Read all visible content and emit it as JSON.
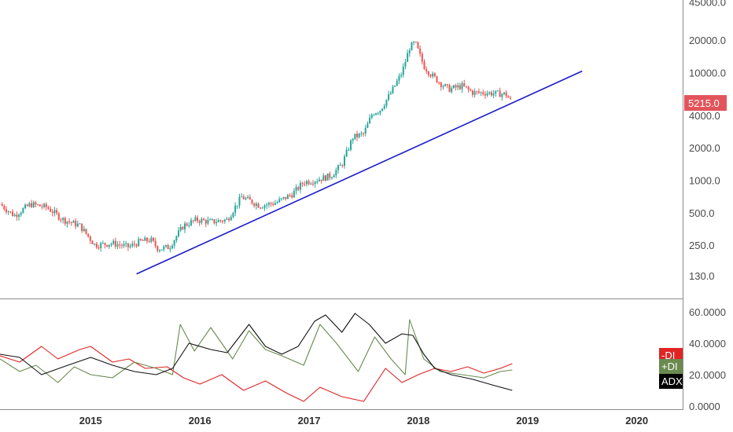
{
  "chart_data": [
    {
      "type": "candlestick",
      "y_scale": "log",
      "ylim": [
        110,
        48000
      ],
      "y_ticks": [
        "45000.0",
        "20000.0",
        "10000.0",
        "4000.0",
        "2000.0",
        "1000.0",
        "500.0",
        "250.0",
        "130.0"
      ],
      "y_tick_values": [
        45000,
        20000,
        10000,
        4000,
        2000,
        1000,
        500,
        250,
        130
      ],
      "x_ticks": [
        "2015",
        "2016",
        "2017",
        "2018",
        "2019",
        "2020"
      ],
      "x_tick_values": [
        2015,
        2016,
        2017,
        2018,
        2019,
        2020
      ],
      "xlim": [
        2014.17,
        2020.42
      ],
      "series": [
        {
          "x": [
            2014.17,
            2014.3,
            2014.45,
            2014.6,
            2014.75,
            2014.9,
            2015.04,
            2015.2,
            2015.35,
            2015.45,
            2015.55,
            2015.62,
            2015.72,
            2015.85,
            2015.97,
            2016.1,
            2016.25,
            2016.38,
            2016.45,
            2016.55,
            2016.7,
            2016.85,
            2016.95,
            2017.05,
            2017.2,
            2017.3,
            2017.4,
            2017.5,
            2017.58,
            2017.65,
            2017.75,
            2017.85,
            2017.92,
            2017.97,
            2018.05,
            2018.12,
            2018.2,
            2018.28,
            2018.4,
            2018.5,
            2018.6,
            2018.7,
            2018.8,
            2018.86
          ],
          "values": [
            600,
            470,
            600,
            560,
            430,
            380,
            250,
            260,
            240,
            270,
            280,
            230,
            240,
            380,
            430,
            410,
            430,
            700,
            650,
            580,
            620,
            750,
            960,
            1000,
            1100,
            1400,
            2500,
            2700,
            4200,
            4500,
            6500,
            10000,
            17000,
            19000,
            11500,
            9500,
            8000,
            7000,
            7500,
            6500,
            6500,
            6400,
            6300,
            5215
          ]
        }
      ],
      "last_price": "5215.0",
      "trendline": {
        "start": [
          2015.42,
          135
        ],
        "end": [
          2019.5,
          10300
        ]
      }
    },
    {
      "type": "line",
      "ylim": [
        0,
        65
      ],
      "y_ticks": [
        "60.0000",
        "40.0000",
        "20.0000",
        "0.0000"
      ],
      "y_tick_values": [
        60,
        40,
        20,
        0
      ],
      "series": [
        {
          "name": "-DI",
          "x": [
            2014.17,
            2014.35,
            2014.55,
            2014.7,
            2014.9,
            2015.0,
            2015.2,
            2015.35,
            2015.5,
            2015.7,
            2015.85,
            2016.0,
            2016.2,
            2016.4,
            2016.6,
            2016.8,
            2016.95,
            2017.1,
            2017.3,
            2017.5,
            2017.7,
            2017.85,
            2018.0,
            2018.15,
            2018.3,
            2018.45,
            2018.6,
            2018.75,
            2018.86
          ],
          "values": [
            32,
            28,
            38,
            30,
            36,
            38,
            28,
            30,
            24,
            25,
            18,
            14,
            20,
            10,
            16,
            8,
            3,
            12,
            6,
            3,
            24,
            15,
            20,
            24,
            22,
            25,
            21,
            24,
            27
          ]
        },
        {
          "name": "+DI",
          "x": [
            2014.17,
            2014.35,
            2014.5,
            2014.7,
            2014.85,
            2015.0,
            2015.2,
            2015.4,
            2015.6,
            2015.75,
            2015.82,
            2015.95,
            2016.1,
            2016.3,
            2016.45,
            2016.6,
            2016.75,
            2016.95,
            2017.1,
            2017.25,
            2017.45,
            2017.6,
            2017.75,
            2017.88,
            2017.92,
            2018.05,
            2018.2,
            2018.4,
            2018.6,
            2018.75,
            2018.86
          ],
          "values": [
            30,
            22,
            26,
            15,
            25,
            20,
            18,
            28,
            24,
            20,
            52,
            35,
            50,
            30,
            48,
            36,
            32,
            26,
            52,
            40,
            22,
            44,
            30,
            20,
            55,
            30,
            22,
            20,
            18,
            22,
            23
          ]
        },
        {
          "name": "ADX",
          "x": [
            2014.17,
            2014.35,
            2014.55,
            2014.75,
            2015.0,
            2015.2,
            2015.4,
            2015.6,
            2015.75,
            2015.9,
            2016.1,
            2016.25,
            2016.45,
            2016.6,
            2016.75,
            2016.9,
            2017.05,
            2017.15,
            2017.3,
            2017.42,
            2017.55,
            2017.7,
            2017.85,
            2017.95,
            2018.05,
            2018.15,
            2018.3,
            2018.5,
            2018.7,
            2018.86
          ],
          "values": [
            33,
            31,
            20,
            25,
            31,
            26,
            22,
            20,
            24,
            40,
            36,
            34,
            52,
            38,
            33,
            38,
            54,
            58,
            47,
            59,
            52,
            40,
            46,
            45,
            33,
            24,
            20,
            17,
            13,
            10
          ]
        }
      ],
      "legend_labels": [
        "-DI",
        "+DI",
        "ADX"
      ]
    }
  ],
  "colors": {
    "up": "#26a69a",
    "down": "#ef5350",
    "trendline": "#1a1acd",
    "minus_di": "#e02424",
    "plus_di": "#6a8a4f",
    "adx": "#111111",
    "price_badge": "#e2545a"
  }
}
